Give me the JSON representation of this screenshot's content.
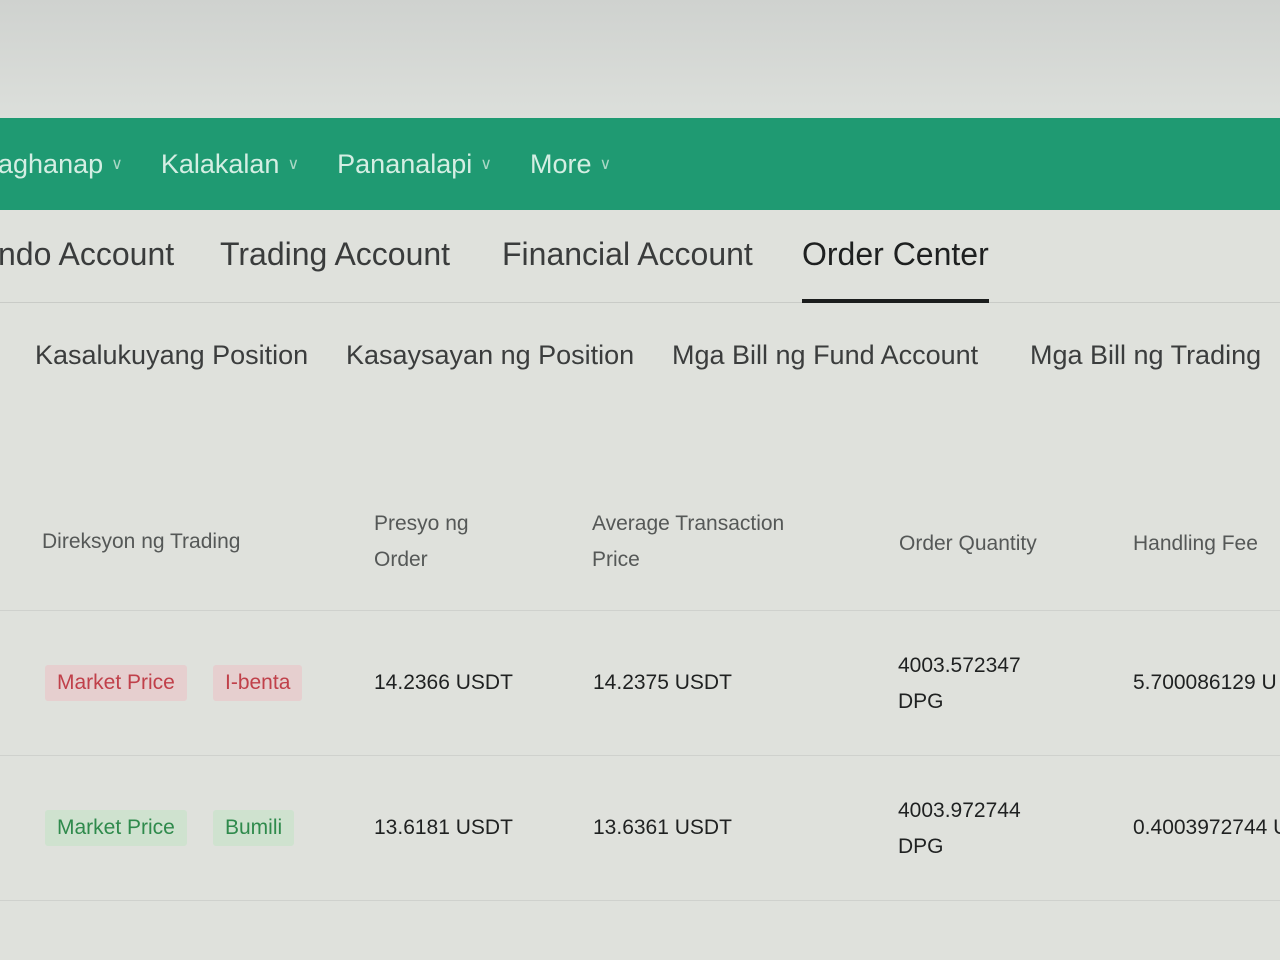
{
  "nav": {
    "items": [
      {
        "label": "aghanap"
      },
      {
        "label": "Kalakalan"
      },
      {
        "label": "Pananalapi"
      },
      {
        "label": "More"
      }
    ]
  },
  "tabs": [
    {
      "label": "ndo Account"
    },
    {
      "label": "Trading Account"
    },
    {
      "label": "Financial Account"
    },
    {
      "label": "Order Center",
      "active": true
    }
  ],
  "subtabs": [
    {
      "label": "Kasalukuyang Position"
    },
    {
      "label": "Kasaysayan ng Position"
    },
    {
      "label": "Mga Bill ng Fund Account"
    },
    {
      "label": "Mga Bill ng Trading"
    }
  ],
  "table": {
    "headers": [
      "Direksyon ng Trading",
      "Presyo ng Order",
      "Average Transaction Price",
      "Order Quantity",
      "Handling Fee"
    ],
    "rows": [
      {
        "type": "Market Price",
        "direction": "I-benta",
        "side": "sell",
        "order_price": "14.2366 USDT",
        "avg_price": "14.2375 USDT",
        "qty": "4003.572347",
        "qty_unit": "DPG",
        "fee": "5.700086129 U"
      },
      {
        "type": "Market Price",
        "direction": "Bumili",
        "side": "buy",
        "order_price": "13.6181 USDT",
        "avg_price": "13.6361 USDT",
        "qty": "4003.972744",
        "qty_unit": "DPG",
        "fee": "0.4003972744 U"
      }
    ]
  },
  "colors": {
    "nav_bg": "#1f9a72",
    "sell": "#c0404a",
    "buy": "#2f8a4c"
  }
}
